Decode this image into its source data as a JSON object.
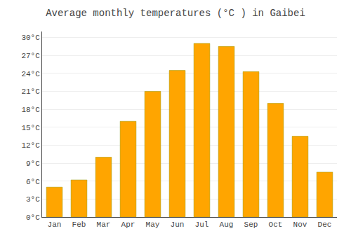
{
  "chart_data": {
    "type": "bar",
    "title": "Average monthly temperatures (°C ) in Gaibei",
    "categories": [
      "Jan",
      "Feb",
      "Mar",
      "Apr",
      "May",
      "Jun",
      "Jul",
      "Aug",
      "Sep",
      "Oct",
      "Nov",
      "Dec"
    ],
    "values": [
      5.0,
      6.2,
      10.0,
      16.0,
      21.0,
      24.5,
      29.0,
      28.5,
      24.3,
      19.0,
      13.5,
      7.5
    ],
    "color": "#FFA500",
    "ylim": [
      0,
      31
    ],
    "yticks": [
      {
        "value": 0,
        "label": "0°C"
      },
      {
        "value": 3,
        "label": "3°C"
      },
      {
        "value": 6,
        "label": "6°C"
      },
      {
        "value": 9,
        "label": "9°C"
      },
      {
        "value": 12,
        "label": "12°C"
      },
      {
        "value": 15,
        "label": "15°C"
      },
      {
        "value": 18,
        "label": "18°C"
      },
      {
        "value": 21,
        "label": "21°C"
      },
      {
        "value": 24,
        "label": "24°C"
      },
      {
        "value": 27,
        "label": "27°C"
      },
      {
        "value": 30,
        "label": "30°C"
      }
    ],
    "grid": true
  }
}
